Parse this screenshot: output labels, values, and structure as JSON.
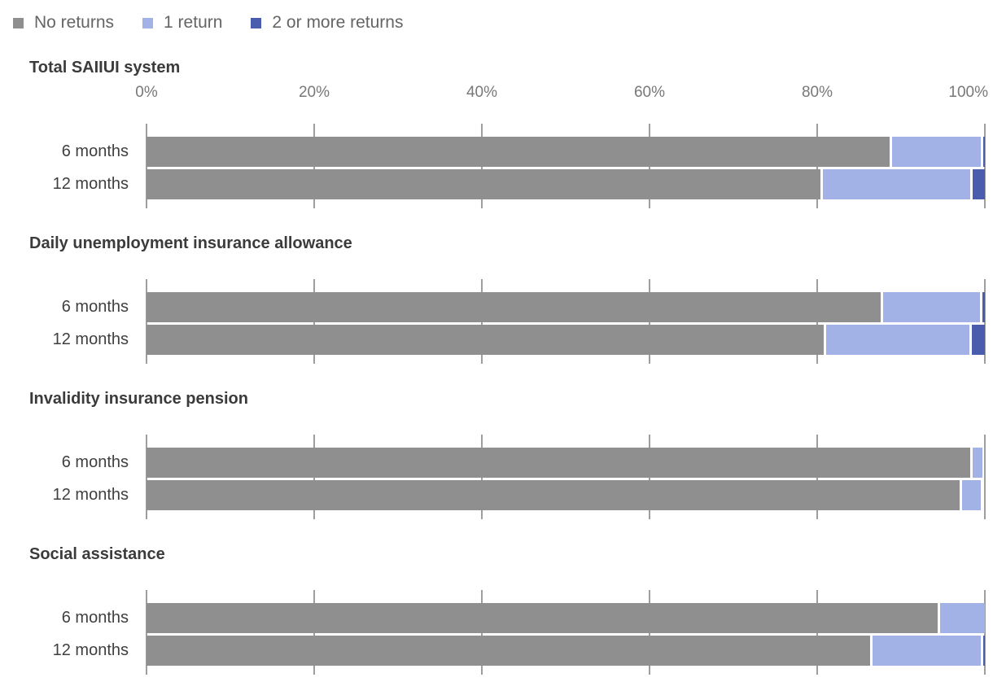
{
  "legend": {
    "position": "top",
    "items": [
      {
        "label": "No returns",
        "color": "#8f8f8f"
      },
      {
        "label": "1 return",
        "color": "#a3b2e6"
      },
      {
        "label": "2 or more returns",
        "color": "#4a5cad"
      }
    ]
  },
  "axis": {
    "tick_labels": [
      "0%",
      "20%",
      "40%",
      "60%",
      "80%",
      "100%"
    ],
    "tick_values": [
      0,
      20,
      40,
      60,
      80,
      100
    ],
    "min": 0,
    "max": 100,
    "gridline_color": "#9e9e9e"
  },
  "chart_data": [
    {
      "type": "bar",
      "stacked": true,
      "orientation": "horizontal",
      "title": "Total SAIIUI system",
      "categories": [
        "6 months",
        "12 months"
      ],
      "series": [
        {
          "name": "No returns",
          "color": "#8f8f8f",
          "values": [
            88.6,
            80.4
          ]
        },
        {
          "name": "1 return",
          "color": "#a3b2e6",
          "values": [
            10.9,
            17.9
          ]
        },
        {
          "name": "2 or more returns",
          "color": "#4a5cad",
          "values": [
            0.5,
            1.7
          ]
        }
      ],
      "xlim": [
        0,
        100
      ],
      "x_tick_labels_visible": true,
      "grid": true
    },
    {
      "type": "bar",
      "stacked": true,
      "orientation": "horizontal",
      "title": "Daily unemployment insurance allowance",
      "categories": [
        "6 months",
        "12 months"
      ],
      "series": [
        {
          "name": "No returns",
          "color": "#8f8f8f",
          "values": [
            87.6,
            80.8
          ]
        },
        {
          "name": "1 return",
          "color": "#a3b2e6",
          "values": [
            11.8,
            17.4
          ]
        },
        {
          "name": "2 or more returns",
          "color": "#4a5cad",
          "values": [
            0.6,
            1.8
          ]
        }
      ],
      "xlim": [
        0,
        100
      ],
      "x_tick_labels_visible": false,
      "grid": true
    },
    {
      "type": "bar",
      "stacked": true,
      "orientation": "horizontal",
      "title": "Invalidity insurance pension",
      "categories": [
        "6 months",
        "12 months"
      ],
      "series": [
        {
          "name": "No returns",
          "color": "#8f8f8f",
          "values": [
            98.3,
            97.0
          ]
        },
        {
          "name": "1 return",
          "color": "#a3b2e6",
          "values": [
            1.4,
            2.5
          ]
        },
        {
          "name": "2 or more returns",
          "color": "#4a5cad",
          "values": [
            0,
            0
          ]
        }
      ],
      "xlim": [
        0,
        100
      ],
      "x_tick_labels_visible": false,
      "grid": true
    },
    {
      "type": "bar",
      "stacked": true,
      "orientation": "horizontal",
      "title": "Social assistance",
      "categories": [
        "6 months",
        "12 months"
      ],
      "series": [
        {
          "name": "No returns",
          "color": "#8f8f8f",
          "values": [
            94.4,
            86.3
          ]
        },
        {
          "name": "1 return",
          "color": "#a3b2e6",
          "values": [
            5.6,
            13.2
          ]
        },
        {
          "name": "2 or more returns",
          "color": "#4a5cad",
          "values": [
            0,
            0.5
          ]
        }
      ],
      "xlim": [
        0,
        100
      ],
      "x_tick_labels_visible": false,
      "grid": true
    }
  ]
}
